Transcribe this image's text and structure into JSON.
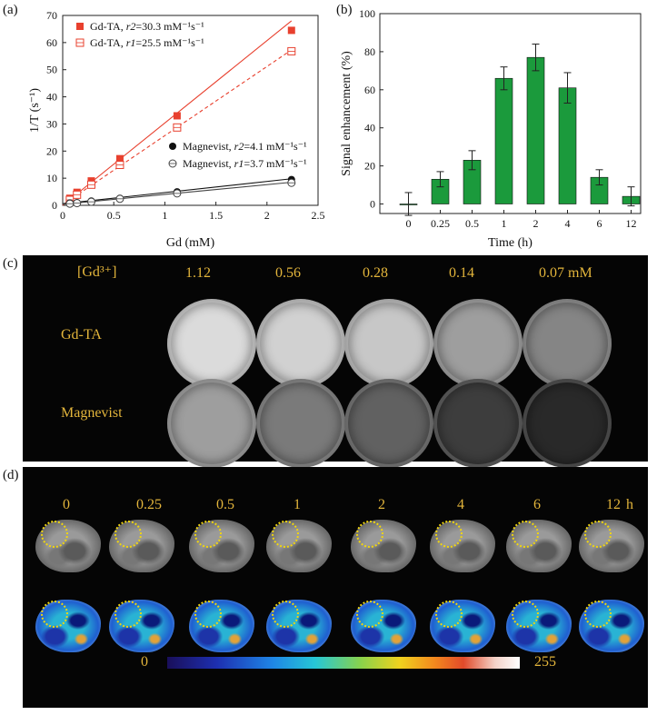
{
  "panel_labels": {
    "a": "(a)",
    "b": "(b)",
    "c": "(c)",
    "d": "(d)"
  },
  "chart_data": [
    {
      "type": "scatter",
      "ylabel": "1/T (s⁻¹)",
      "xlabel": "Gd (mM)",
      "xlim": [
        0,
        2.5
      ],
      "ylim": [
        0,
        70
      ],
      "xticks": [
        "0",
        "0.5",
        "1",
        "1.5",
        "2",
        "2.5"
      ],
      "yticks": [
        "0",
        "10",
        "20",
        "30",
        "40",
        "50",
        "60",
        "70"
      ],
      "legend_top": [
        {
          "name": "Gd-TA",
          "param": "r2",
          "value": "=30.3 mM⁻¹s⁻¹",
          "marker": "filled-square",
          "color": "#e8402e"
        },
        {
          "name": "Gd-TA",
          "param": "r1",
          "value": "=25.5 mM⁻¹s⁻¹",
          "marker": "open-square",
          "color": "#e8402e"
        }
      ],
      "legend_bottom": [
        {
          "name": "Magnevist",
          "param": "r2",
          "value": "=4.1 mM⁻¹s⁻¹",
          "marker": "filled-circle",
          "color": "#111111"
        },
        {
          "name": "Magnevist",
          "param": "r1",
          "value": "=3.7 mM⁻¹s⁻¹",
          "marker": "open-circle",
          "color": "#444444"
        }
      ],
      "series": [
        {
          "name": "Gd-TA r2",
          "marker": "filled-square",
          "color": "#e8402e",
          "line": "solid",
          "x": [
            0.07,
            0.14,
            0.28,
            0.56,
            1.12,
            2.24
          ],
          "y": [
            2.6,
            4.8,
            9.0,
            17.2,
            33.0,
            64.5
          ],
          "fit": [
            0,
            68.0
          ]
        },
        {
          "name": "Gd-TA r1",
          "marker": "open-square",
          "color": "#e8402e",
          "line": "dashed",
          "x": [
            0.07,
            0.14,
            0.28,
            0.56,
            1.12,
            2.24
          ],
          "y": [
            2.0,
            3.9,
            7.6,
            14.9,
            28.7,
            56.8
          ],
          "fit": [
            0.2,
            57.3
          ]
        },
        {
          "name": "Magnevist r2",
          "marker": "filled-circle",
          "color": "#111111",
          "line": "solid",
          "x": [
            0.07,
            0.14,
            0.28,
            0.56,
            1.12,
            2.24
          ],
          "y": [
            0.9,
            1.0,
            1.6,
            2.6,
            5.0,
            9.5
          ],
          "fit": [
            0.6,
            9.8
          ]
        },
        {
          "name": "Magnevist r1",
          "marker": "open-circle",
          "color": "#444444",
          "line": "solid",
          "x": [
            0.07,
            0.14,
            0.28,
            0.56,
            1.12,
            2.24
          ],
          "y": [
            0.6,
            0.8,
            1.3,
            2.4,
            4.4,
            8.3
          ],
          "fit": [
            0.4,
            8.5
          ]
        }
      ]
    },
    {
      "type": "bar",
      "ylabel": "Signal enhancement (%)",
      "xlabel": "Time (h)",
      "ylim": [
        -5,
        100
      ],
      "yticks": [
        "0",
        "20",
        "40",
        "60",
        "80",
        "100"
      ],
      "categories": [
        "0",
        "0.25",
        "0.5",
        "1",
        "2",
        "4",
        "6",
        "12"
      ],
      "values": [
        0,
        13,
        23,
        66,
        77,
        61,
        14,
        4
      ],
      "errors": [
        6,
        4,
        5,
        6,
        7,
        8,
        4,
        5
      ],
      "color": "#1b9a3c"
    }
  ],
  "panel_c": {
    "header_label": "[Gd³⁺]",
    "concentrations": [
      "1.12",
      "0.56",
      "0.28",
      "0.14",
      "0.07 mM"
    ],
    "row_labels": [
      "Gd-TA",
      "Magnevist"
    ],
    "brightness": {
      "Gd-TA": [
        0.86,
        0.82,
        0.78,
        0.62,
        0.52
      ],
      "Magnevist": [
        0.62,
        0.48,
        0.38,
        0.24,
        0.16
      ]
    }
  },
  "panel_d": {
    "time_labels": [
      "0",
      "0.25",
      "0.5",
      "1",
      "2",
      "4",
      "6",
      "12"
    ],
    "time_unit": "h",
    "colorbar_min": "0",
    "colorbar_max": "255"
  }
}
